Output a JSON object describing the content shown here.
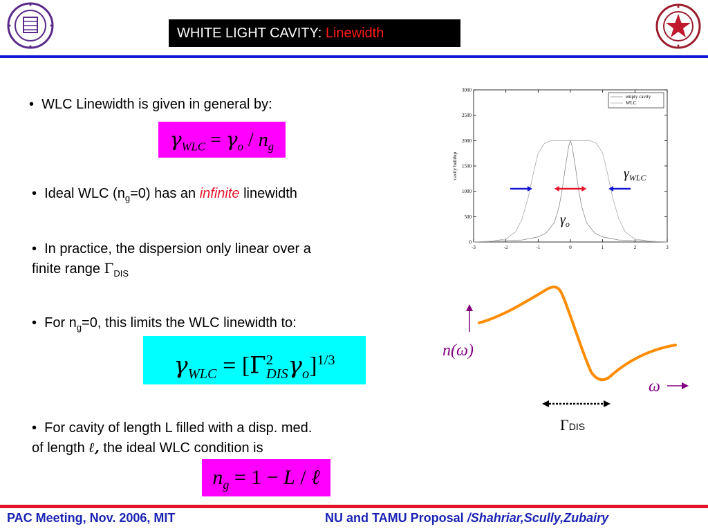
{
  "header": {
    "title_main": "WHITE LIGHT CAVITY:",
    "title_accent": "Linewidth",
    "left_logo": "northwestern-university-seal",
    "right_logo": "texas-am-star-seal"
  },
  "bullets": {
    "b1": "WLC Linewidth is given in general by:",
    "b2_pre": "Ideal WLC (n",
    "b2_sub": "g",
    "b2_mid": "=0) has an ",
    "b2_em": "infinite",
    "b2_post": " linewidth",
    "b3_line1": "In practice, the dispersion only linear over a",
    "b3_line2": "finite range ",
    "b3_gamma": "Γ",
    "b3_sub": "DIS",
    "b4_pre": "For n",
    "b4_sub": "g",
    "b4_post": "=0, this limits the WLC linewidth to:",
    "b5_line1": "For cavity of length L filled with a disp. med.",
    "b5_line2_pre": "of length ",
    "b5_ell": "ℓ,",
    "b5_line2_post": " the ideal WLC condition is"
  },
  "equations": {
    "eq1": {
      "gamma": "γ",
      "sub": "WLC",
      "eq": " = ",
      "gamma2": "γ",
      "sub2": "o",
      "slash": " / ",
      "n": "n",
      "nsub": "g"
    },
    "eq2": {
      "gamma": "γ",
      "sub": "WLC",
      "eq": " = [",
      "Gamma": "Γ",
      "sup": "2",
      "subdis": "DIS",
      "gamma2": "γ",
      "sub2": "o",
      "close": "]",
      "exp": "1/3"
    },
    "eq3": {
      "n": "n",
      "nsub": "g",
      "eq": " = 1 − ",
      "L": "L",
      "slash": " / ",
      "ell": "ℓ"
    }
  },
  "chart_data": {
    "type": "line",
    "title": "",
    "xlabel": "",
    "ylabel": "cavity buildup",
    "xlim": [
      -3,
      3
    ],
    "ylim": [
      0,
      3000
    ],
    "x_ticks": [
      "-3",
      "-2",
      "-1",
      "0",
      "1",
      "2",
      "3"
    ],
    "y_ticks": [
      "0",
      "500",
      "1000",
      "1500",
      "2000",
      "2500",
      "3000"
    ],
    "legend_position": "top-right",
    "series": [
      {
        "name": "empty cavity",
        "x": [
          -3,
          -1.5,
          -1,
          -0.75,
          -0.5,
          -0.35,
          -0.25,
          -0.15,
          -0.05,
          0,
          0.05,
          0.15,
          0.25,
          0.35,
          0.5,
          0.75,
          1,
          1.5,
          3
        ],
        "y": [
          2,
          40,
          100,
          180,
          380,
          700,
          1050,
          1500,
          1900,
          2000,
          1900,
          1500,
          1050,
          700,
          380,
          180,
          100,
          40,
          2
        ]
      },
      {
        "name": "WLC",
        "x": [
          -3,
          -2.5,
          -2,
          -1.7,
          -1.5,
          -1.3,
          -1.15,
          -1,
          -0.8,
          -0.6,
          0,
          0.6,
          0.8,
          1,
          1.15,
          1.3,
          1.5,
          1.7,
          2,
          2.5,
          3
        ],
        "y": [
          2,
          10,
          60,
          200,
          450,
          900,
          1350,
          1750,
          1950,
          2000,
          2000,
          2000,
          1950,
          1750,
          1350,
          900,
          450,
          200,
          60,
          10,
          2
        ]
      }
    ],
    "annotations": {
      "gamma_wlc": "γ",
      "gamma_wlc_sub": "WLC",
      "gamma_o": "γ",
      "gamma_o_sub": "o"
    }
  },
  "dispersion": {
    "n_label": "n(ω)",
    "omega_label": "ω",
    "gamma_label": "Γ",
    "gamma_sub": "DIS",
    "curve_color": "#ff8c00",
    "arrow_color": "#800080"
  },
  "colors": {
    "title_accent": "#ff1a1a",
    "top_rule": "#1515d6",
    "bottom_rule": "#e5142b",
    "footer": "#1a23b4",
    "blue_arrow": "#1515d6",
    "red_arrow": "#e5142b",
    "eq_magenta": "#ff00ff",
    "eq_cyan": "#00ffff"
  },
  "footer": {
    "left": "PAC Meeting, Nov. 2006, MIT",
    "right_pre": "NU and TAMU Proposal ",
    "right_it": "/Shahriar,Scully,Zubairy"
  }
}
